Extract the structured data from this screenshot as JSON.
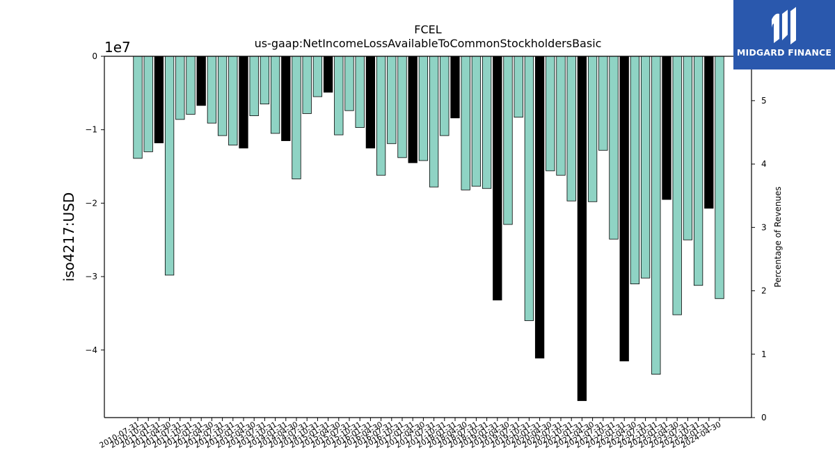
{
  "chart_data": {
    "type": "bar",
    "title": "FCEL",
    "subtitle": "us-gaap:NetIncomeLossAvailableToCommonStockholdersBasic",
    "ylabel": "iso4217:USD",
    "y_exponent_label": "1e7",
    "y2label": "Percentage of Revenues",
    "ylim": [
      -4.92,
      0
    ],
    "y2lim": [
      0,
      5.7
    ],
    "yticks": [
      0,
      -1,
      -2,
      -3,
      -4
    ],
    "yticks_labels": [
      "0",
      "−1",
      "−2",
      "−3",
      "−4"
    ],
    "y2ticks": [
      0,
      1,
      2,
      3,
      4,
      5
    ],
    "grid": false,
    "categories": [
      "2010-07-31",
      "2010-10-31",
      "2011-01-31",
      "2011-04-30",
      "2011-07-31",
      "2011-10-31",
      "2012-01-31",
      "2012-04-30",
      "2012-07-31",
      "2012-10-31",
      "2013-01-31",
      "2013-04-30",
      "2013-07-31",
      "2013-10-31",
      "2014-01-31",
      "2014-04-30",
      "2014-07-31",
      "2014-10-31",
      "2015-01-31",
      "2015-04-30",
      "2015-07-31",
      "2015-10-31",
      "2016-01-31",
      "2016-04-30",
      "2016-07-31",
      "2016-10-31",
      "2017-01-31",
      "2017-04-30",
      "2017-07-31",
      "2017-10-31",
      "2018-01-31",
      "2018-04-30",
      "2018-07-31",
      "2018-10-31",
      "2019-01-31",
      "2019-04-30",
      "2019-07-31",
      "2019-10-31",
      "2020-01-31",
      "2020-04-30",
      "2020-07-31",
      "2020-10-31",
      "2021-01-31",
      "2021-04-30",
      "2021-07-31",
      "2021-10-31",
      "2022-01-31",
      "2022-04-30",
      "2022-07-31",
      "2022-10-31",
      "2023-01-31",
      "2023-04-30",
      "2023-07-31",
      "2023-10-31",
      "2024-01-31",
      "2024-04-30"
    ],
    "values": [
      -1.39,
      -1.3,
      -1.18,
      -2.98,
      -0.86,
      -0.79,
      -0.67,
      -0.91,
      -1.08,
      -1.21,
      -1.25,
      -0.81,
      -0.65,
      -1.05,
      -1.15,
      -1.67,
      -0.78,
      -0.55,
      -0.49,
      -1.07,
      -0.74,
      -0.97,
      -1.25,
      -1.62,
      -1.19,
      -1.38,
      -1.45,
      -1.42,
      -1.78,
      -1.08,
      -0.84,
      -1.82,
      -1.77,
      -1.8,
      -3.32,
      -2.29,
      -0.83,
      -3.6,
      -4.11,
      -1.56,
      -1.62,
      -1.97,
      -4.69,
      -1.98,
      -1.28,
      -2.49,
      -4.15,
      -3.1,
      -3.02,
      -4.33,
      -1.95,
      -3.52,
      -2.5,
      -3.12,
      -2.07,
      -3.3
    ],
    "bar_colors": [
      "#8fd3c4",
      "#8fd3c4",
      "#000000",
      "#8fd3c4",
      "#8fd3c4",
      "#8fd3c4",
      "#000000",
      "#8fd3c4",
      "#8fd3c4",
      "#8fd3c4",
      "#000000",
      "#8fd3c4",
      "#8fd3c4",
      "#8fd3c4",
      "#000000",
      "#8fd3c4",
      "#8fd3c4",
      "#8fd3c4",
      "#000000",
      "#8fd3c4",
      "#8fd3c4",
      "#8fd3c4",
      "#000000",
      "#8fd3c4",
      "#8fd3c4",
      "#8fd3c4",
      "#000000",
      "#8fd3c4",
      "#8fd3c4",
      "#8fd3c4",
      "#000000",
      "#8fd3c4",
      "#8fd3c4",
      "#8fd3c4",
      "#000000",
      "#8fd3c4",
      "#8fd3c4",
      "#8fd3c4",
      "#000000",
      "#8fd3c4",
      "#8fd3c4",
      "#8fd3c4",
      "#000000",
      "#8fd3c4",
      "#8fd3c4",
      "#8fd3c4",
      "#000000",
      "#8fd3c4",
      "#8fd3c4",
      "#8fd3c4",
      "#000000",
      "#8fd3c4",
      "#8fd3c4",
      "#8fd3c4",
      "#000000",
      "#8fd3c4"
    ]
  },
  "logo": {
    "text": "MIDGARD FINANCE",
    "icon": "midgard-finance-logo-icon",
    "background": "#2a58ad"
  }
}
